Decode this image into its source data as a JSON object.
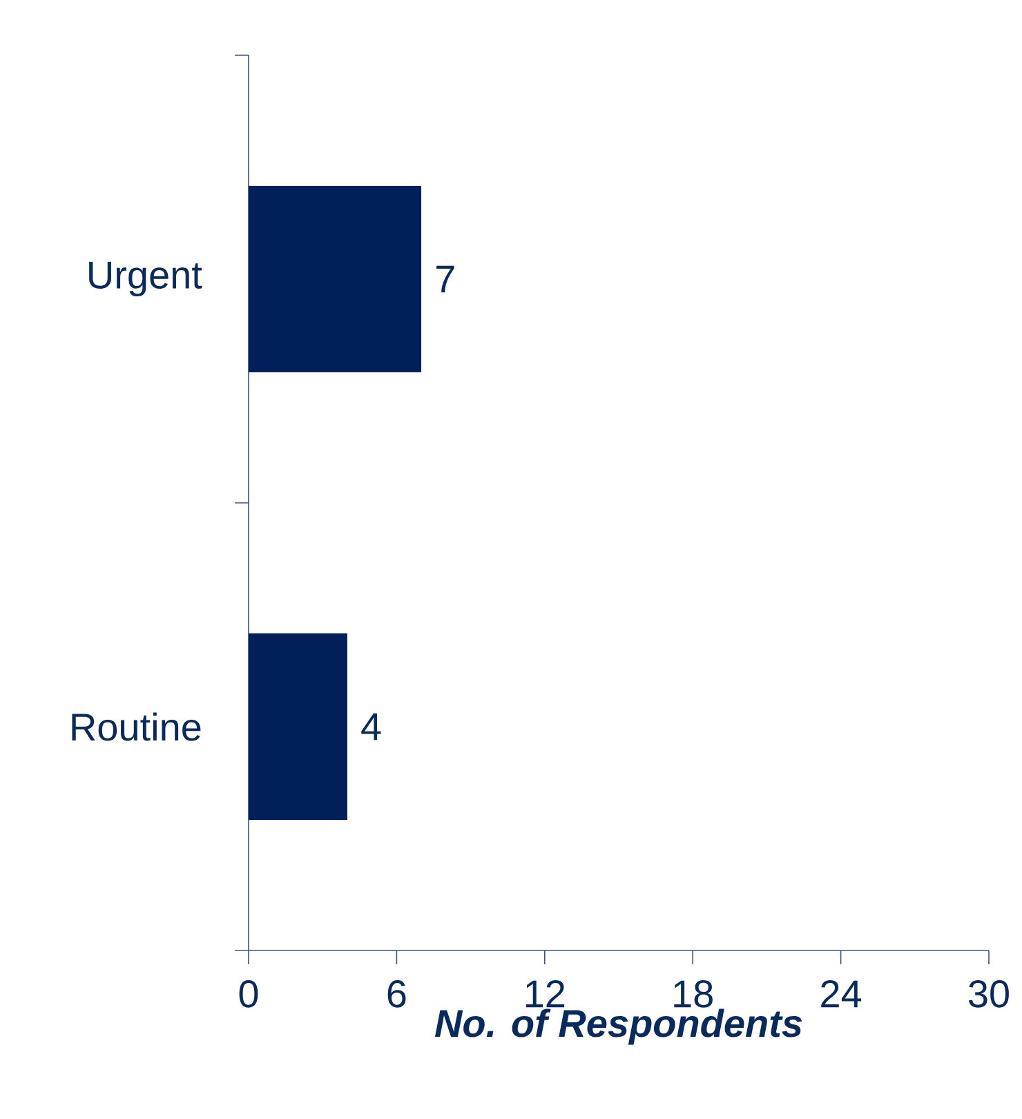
{
  "chart_data": {
    "type": "bar",
    "orientation": "horizontal",
    "categories": [
      "Urgent",
      "Routine"
    ],
    "values": [
      7,
      4
    ],
    "color": "#001f5b",
    "xlim": [
      0,
      30
    ],
    "xticks": [
      0,
      6,
      12,
      18,
      24,
      30
    ],
    "xlabel": "No. of Respondents",
    "data_labels": true,
    "grid": false
  }
}
